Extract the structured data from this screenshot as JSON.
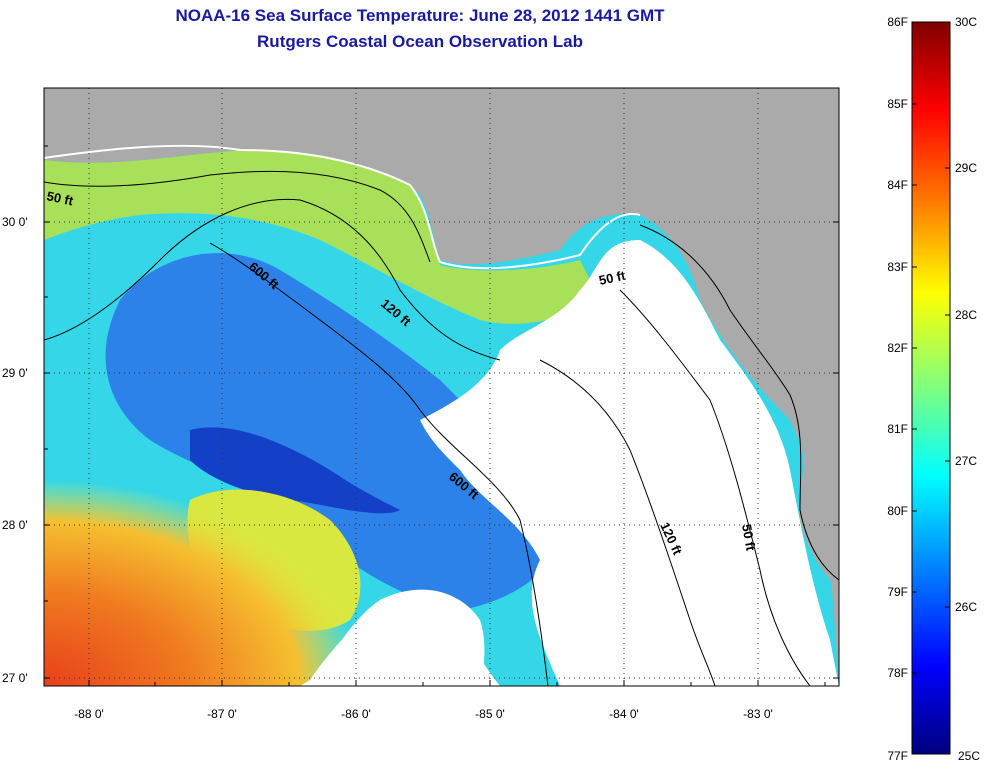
{
  "header": {
    "title": "NOAA-16 Sea Surface Temperature:  June 28, 2012 1441 GMT",
    "subtitle": "Rutgers Coastal Ocean Observation Lab"
  },
  "axes": {
    "lat_labels": [
      "30 0'",
      "29 0'",
      "28 0'",
      "27 0'"
    ],
    "lon_labels": [
      "-88 0'",
      "-87 0'",
      "-86 0'",
      "-85 0'",
      "-84 0'",
      "-83 0'"
    ]
  },
  "contours": {
    "labels": [
      "50 ft",
      "600 ft",
      "120 ft",
      "50 ft",
      "600 ft",
      "120 ft",
      "50 ft"
    ]
  },
  "colorbar": {
    "fahrenheit": [
      "86F",
      "85F",
      "84F",
      "83F",
      "82F",
      "81F",
      "80F",
      "79F",
      "78F",
      "77F"
    ],
    "celsius": [
      "30C",
      "29C",
      "28C",
      "27C",
      "26C",
      "25C"
    ]
  },
  "colors": {
    "land": "#aaaaaa",
    "cloud": "#ffffff",
    "title": "#1a1aa0"
  }
}
